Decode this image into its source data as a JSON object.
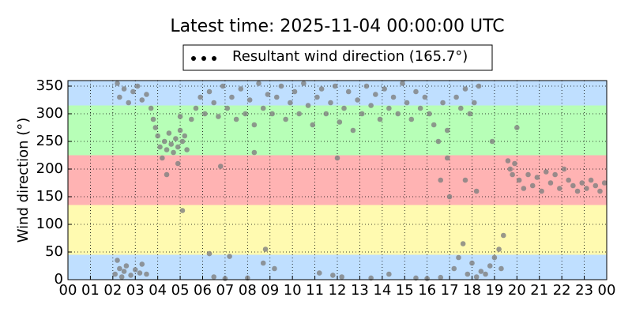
{
  "chart_data": {
    "type": "scatter",
    "title": "Latest time: 2025-11-04 00:00:00 UTC",
    "y_label": "Wind direction (°)",
    "xlim": [
      0,
      24
    ],
    "ylim": [
      0,
      360
    ],
    "xticks": [
      {
        "value": 0,
        "label": "00"
      },
      {
        "value": 1,
        "label": "01"
      },
      {
        "value": 2,
        "label": "02"
      },
      {
        "value": 3,
        "label": "03"
      },
      {
        "value": 4,
        "label": "04"
      },
      {
        "value": 5,
        "label": "05"
      },
      {
        "value": 6,
        "label": "06"
      },
      {
        "value": 7,
        "label": "07"
      },
      {
        "value": 8,
        "label": "08"
      },
      {
        "value": 9,
        "label": "09"
      },
      10,
      11,
      12,
      13,
      14,
      15,
      16,
      17,
      18,
      19,
      20,
      21,
      22,
      23,
      {
        "value": 24,
        "label": "00"
      }
    ],
    "yticks": [
      0,
      50,
      100,
      150,
      200,
      250,
      300,
      350
    ],
    "grid": true,
    "legend_position": "top",
    "legend_marker_color": "#000000",
    "bands": [
      {
        "from": 0,
        "to": 45,
        "color": "#bfdfff"
      },
      {
        "from": 45,
        "to": 135,
        "color": "#fffab0"
      },
      {
        "from": 135,
        "to": 225,
        "color": "#ffb3b3"
      },
      {
        "from": 225,
        "to": 315,
        "color": "#b7ffb7"
      },
      {
        "from": 315,
        "to": 360,
        "color": "#bfdfff"
      }
    ],
    "series": [
      {
        "name": "Resultant wind direction (165.7°)",
        "color": "#7f7f7f",
        "x": [
          2.1,
          2.2,
          2.3,
          2.4,
          2.5,
          2.6,
          2.8,
          3.0,
          3.2,
          3.3,
          3.5,
          2.2,
          2.3,
          2.5,
          2.7,
          2.9,
          3.1,
          3.3,
          3.5,
          3.7,
          3.8,
          3.9,
          4.0,
          4.1,
          4.2,
          4.3,
          4.4,
          4.5,
          4.6,
          4.7,
          4.8,
          4.9,
          5.0,
          5.1,
          5.2,
          5.3,
          4.4,
          4.9,
          5.1,
          5.0,
          5.5,
          5.7,
          5.9,
          6.1,
          6.3,
          6.5,
          6.7,
          6.9,
          7.1,
          7.3,
          7.5,
          7.7,
          7.9,
          8.1,
          8.3,
          8.5,
          8.7,
          8.9,
          6.3,
          6.5,
          6.8,
          7.2,
          7.0,
          8.0,
          8.8,
          8.7,
          8.3,
          9.1,
          9.3,
          9.5,
          9.7,
          9.9,
          10.1,
          10.3,
          10.5,
          10.7,
          10.9,
          11.1,
          11.3,
          11.5,
          11.7,
          11.9,
          12.1,
          12.3,
          12.5,
          12.7,
          12.9,
          13.1,
          13.3,
          13.5,
          13.7,
          13.9,
          14.1,
          14.3,
          14.5,
          14.7,
          14.9,
          15.1,
          15.3,
          15.5,
          15.7,
          15.9,
          9.2,
          11.2,
          11.8,
          12.2,
          12.0,
          13.5,
          14.3,
          15.5,
          16.0,
          16.6,
          16.1,
          16.3,
          16.5,
          16.7,
          16.9,
          16.6,
          16.9,
          17.0,
          17.2,
          17.4,
          17.6,
          17.8,
          18.0,
          18.2,
          18.4,
          17.3,
          17.5,
          17.7,
          17.9,
          18.1,
          18.3,
          17.7,
          18.2,
          18.6,
          18.8,
          19.0,
          19.2,
          19.4,
          19.3,
          18.9,
          19.6,
          19.7,
          19.8,
          19.9,
          20.0,
          20.1,
          20.3,
          20.5,
          20.7,
          20.9,
          21.1,
          21.3,
          21.5,
          21.7,
          21.9,
          22.1,
          22.3,
          22.5,
          22.7,
          22.9,
          23.1,
          23.3,
          23.5,
          23.7,
          23.9
        ],
        "values": [
          10,
          35,
          20,
          5,
          15,
          25,
          8,
          18,
          12,
          28,
          10,
          355,
          330,
          345,
          320,
          340,
          350,
          325,
          335,
          310,
          290,
          275,
          260,
          240,
          220,
          250,
          235,
          265,
          245,
          230,
          255,
          240,
          270,
          250,
          260,
          235,
          190,
          210,
          125,
          295,
          290,
          310,
          330,
          300,
          340,
          320,
          295,
          350,
          310,
          330,
          290,
          345,
          300,
          325,
          280,
          355,
          310,
          335,
          47,
          5,
          205,
          42,
          2,
          3,
          55,
          30,
          230,
          300,
          330,
          350,
          290,
          320,
          340,
          300,
          355,
          315,
          280,
          330,
          345,
          300,
          320,
          350,
          285,
          310,
          340,
          270,
          325,
          300,
          350,
          315,
          335,
          290,
          345,
          310,
          330,
          300,
          355,
          320,
          290,
          340,
          310,
          330,
          20,
          12,
          8,
          5,
          220,
          3,
          10,
          3,
          2,
          4,
          300,
          280,
          250,
          320,
          270,
          180,
          220,
          150,
          20,
          40,
          65,
          10,
          30,
          5,
          15,
          330,
          310,
          345,
          300,
          320,
          350,
          180,
          160,
          10,
          25,
          40,
          55,
          80,
          20,
          250,
          215,
          200,
          190,
          210,
          275,
          180,
          165,
          190,
          170,
          185,
          160,
          195,
          175,
          190,
          165,
          200,
          180,
          170,
          160,
          175,
          165,
          180,
          170,
          160,
          175
        ]
      }
    ]
  }
}
